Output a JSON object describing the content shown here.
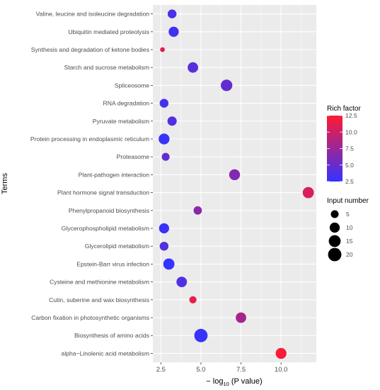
{
  "chart_data": {
    "type": "scatter",
    "xlabel_prefix": "− log",
    "xlabel_sub": "10",
    "xlabel_suffix": " (P value)",
    "ylabel": "Terms",
    "xlim": [
      2.0,
      12.2
    ],
    "xticks": [
      2.5,
      5.0,
      7.5,
      10.0
    ],
    "xtick_labels": [
      "2.5",
      "5.0",
      "7.5",
      "10.0"
    ],
    "grid": true,
    "colors": {
      "low": "#3333ff",
      "high": "#ff1a33",
      "panel": "#ebebeb",
      "grid": "#ffffff"
    },
    "color_legend": {
      "title": "Rich factor",
      "min": 2.5,
      "max": 12.5,
      "ticks": [
        12.5,
        10.0,
        7.5,
        5.0,
        2.5
      ],
      "tick_labels": [
        "12.5",
        "10.0",
        "7.5",
        "5.0",
        "2.5"
      ]
    },
    "size_legend": {
      "title": "Input number",
      "values": [
        5,
        10,
        15,
        20
      ],
      "labels": [
        "5",
        "10",
        "15",
        "20"
      ]
    },
    "points": [
      {
        "term": "Valine, leucine and isoleucine degradation",
        "x": 3.2,
        "rich": 3.6,
        "n": 7
      },
      {
        "term": "Ubiquitin mediated proteolysis",
        "x": 3.3,
        "rich": 3.0,
        "n": 10
      },
      {
        "term": "Synthesis and degradation of ketone bodies",
        "x": 2.6,
        "rich": 11.0,
        "n": 1
      },
      {
        "term": "Starch and sucrose metabolism",
        "x": 4.5,
        "rich": 4.2,
        "n": 11
      },
      {
        "term": "Spliceosome",
        "x": 6.6,
        "rich": 4.8,
        "n": 14
      },
      {
        "term": "RNA degradation",
        "x": 2.7,
        "rich": 3.4,
        "n": 7
      },
      {
        "term": "Pyruvate metabolism",
        "x": 3.2,
        "rich": 4.0,
        "n": 8
      },
      {
        "term": "Protein processing in endoplasmic reticulum",
        "x": 2.7,
        "rich": 2.7,
        "n": 12
      },
      {
        "term": "Proteasome",
        "x": 2.8,
        "rich": 4.6,
        "n": 5
      },
      {
        "term": "Plant-pathogen interaction",
        "x": 7.1,
        "rich": 6.3,
        "n": 12
      },
      {
        "term": "Plant hormone signal transduction",
        "x": 11.7,
        "rich": 10.6,
        "n": 13
      },
      {
        "term": "Phenylpropanoid biosynthesis",
        "x": 4.8,
        "rich": 6.7,
        "n": 6
      },
      {
        "term": "Glycerophospholipid metabolism",
        "x": 2.7,
        "rich": 2.9,
        "n": 10
      },
      {
        "term": "Glycerolipid metabolism",
        "x": 2.7,
        "rich": 4.1,
        "n": 7
      },
      {
        "term": "Epstein-Barr virus infection",
        "x": 3.0,
        "rich": 2.6,
        "n": 13
      },
      {
        "term": "Cysteine and methionine metabolism",
        "x": 3.8,
        "rich": 3.9,
        "n": 11
      },
      {
        "term": "Cutin, suberine and wax biosynthesis",
        "x": 4.5,
        "rich": 11.3,
        "n": 4
      },
      {
        "term": "Carbon fixation in photosynthetic organisms",
        "x": 7.5,
        "rich": 8.2,
        "n": 11
      },
      {
        "term": "Biosynthesis of amino acids",
        "x": 5.0,
        "rich": 2.7,
        "n": 20
      },
      {
        "term": "alpha−Linolenic acid metabolism",
        "x": 10.0,
        "rich": 12.3,
        "n": 12
      }
    ]
  }
}
